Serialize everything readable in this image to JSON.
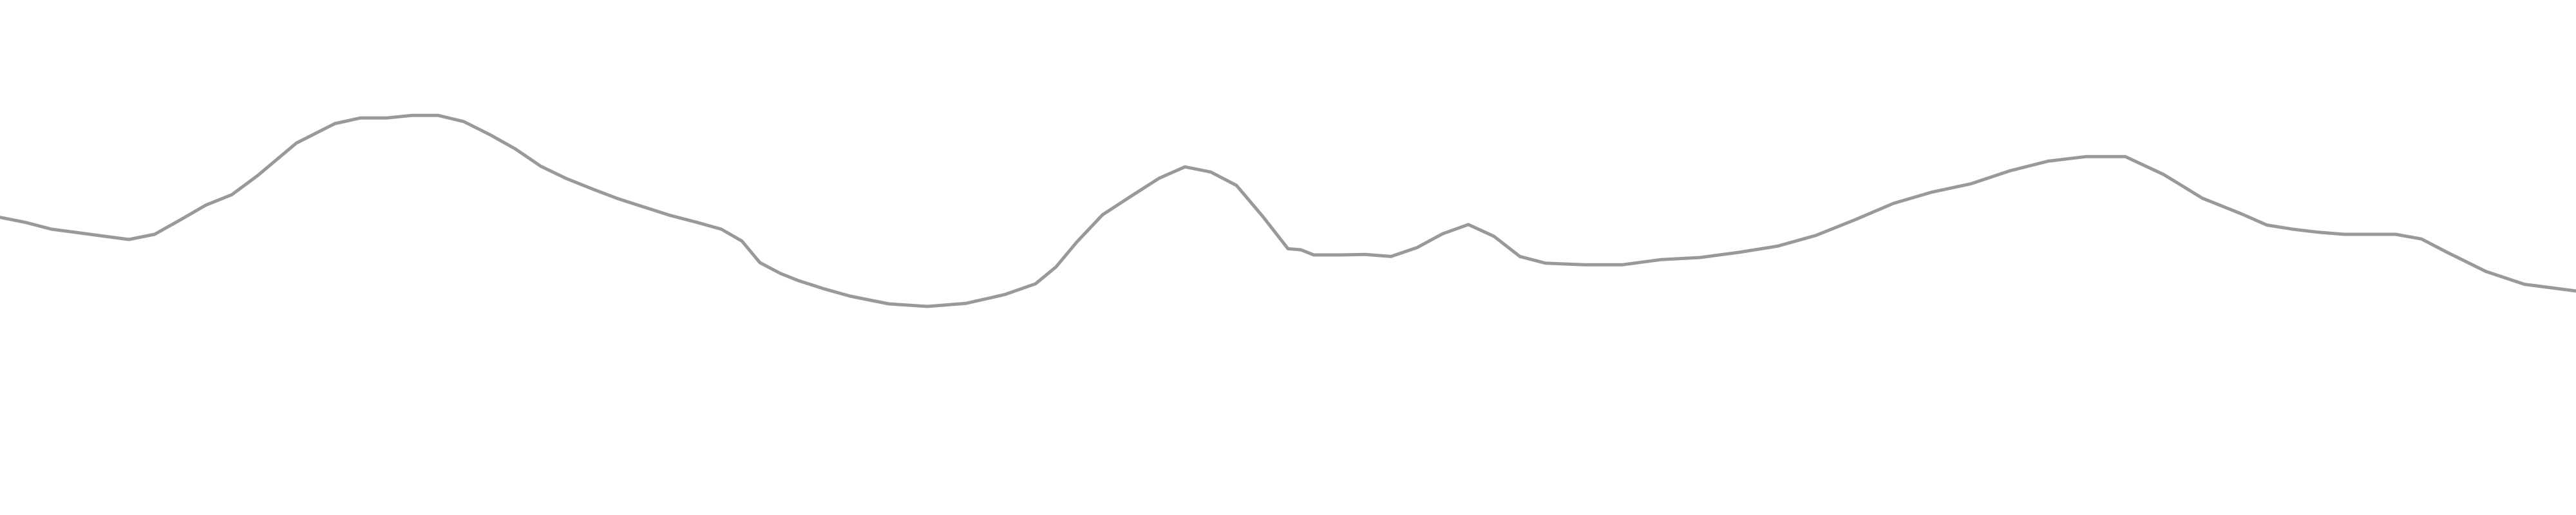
{
  "chart_data": {
    "type": "line",
    "title": "",
    "xlabel": "",
    "ylabel": "",
    "xlim": [
      0,
      1
    ],
    "ylim": [
      0,
      1
    ],
    "grid": false,
    "axes_visible": false,
    "legend": "none",
    "series": [
      {
        "color": "#999999",
        "x": [
          0.0,
          0.01,
          0.02,
          0.035,
          0.05,
          0.06,
          0.07,
          0.08,
          0.09,
          0.1,
          0.115,
          0.13,
          0.14,
          0.15,
          0.16,
          0.17,
          0.18,
          0.19,
          0.2,
          0.21,
          0.22,
          0.23,
          0.24,
          0.25,
          0.26,
          0.27,
          0.28,
          0.288,
          0.295,
          0.303,
          0.31,
          0.32,
          0.33,
          0.345,
          0.36,
          0.375,
          0.39,
          0.402,
          0.41,
          0.418,
          0.428,
          0.44,
          0.45,
          0.46,
          0.47,
          0.48,
          0.49,
          0.5,
          0.505,
          0.51,
          0.52,
          0.53,
          0.54,
          0.55,
          0.56,
          0.57,
          0.58,
          0.59,
          0.6,
          0.615,
          0.63,
          0.645,
          0.66,
          0.675,
          0.69,
          0.705,
          0.72,
          0.735,
          0.75,
          0.765,
          0.78,
          0.795,
          0.81,
          0.825,
          0.84,
          0.855,
          0.87,
          0.88,
          0.89,
          0.9,
          0.91,
          0.92,
          0.93,
          0.94,
          0.95,
          0.965,
          0.98,
          1.0
        ],
        "y": [
          0.578,
          0.568,
          0.555,
          0.545,
          0.535,
          0.545,
          0.573,
          0.602,
          0.622,
          0.659,
          0.722,
          0.76,
          0.771,
          0.771,
          0.776,
          0.776,
          0.764,
          0.739,
          0.711,
          0.677,
          0.653,
          0.633,
          0.614,
          0.598,
          0.582,
          0.569,
          0.555,
          0.532,
          0.49,
          0.469,
          0.455,
          0.439,
          0.425,
          0.41,
          0.405,
          0.411,
          0.428,
          0.449,
          0.482,
          0.53,
          0.583,
          0.622,
          0.654,
          0.676,
          0.666,
          0.64,
          0.581,
          0.517,
          0.515,
          0.505,
          0.505,
          0.506,
          0.502,
          0.519,
          0.546,
          0.564,
          0.541,
          0.502,
          0.489,
          0.486,
          0.486,
          0.496,
          0.5,
          0.51,
          0.522,
          0.543,
          0.573,
          0.605,
          0.627,
          0.643,
          0.668,
          0.687,
          0.696,
          0.696,
          0.661,
          0.615,
          0.585,
          0.563,
          0.555,
          0.549,
          0.545,
          0.545,
          0.545,
          0.536,
          0.51,
          0.473,
          0.448,
          0.435
        ]
      }
    ]
  }
}
